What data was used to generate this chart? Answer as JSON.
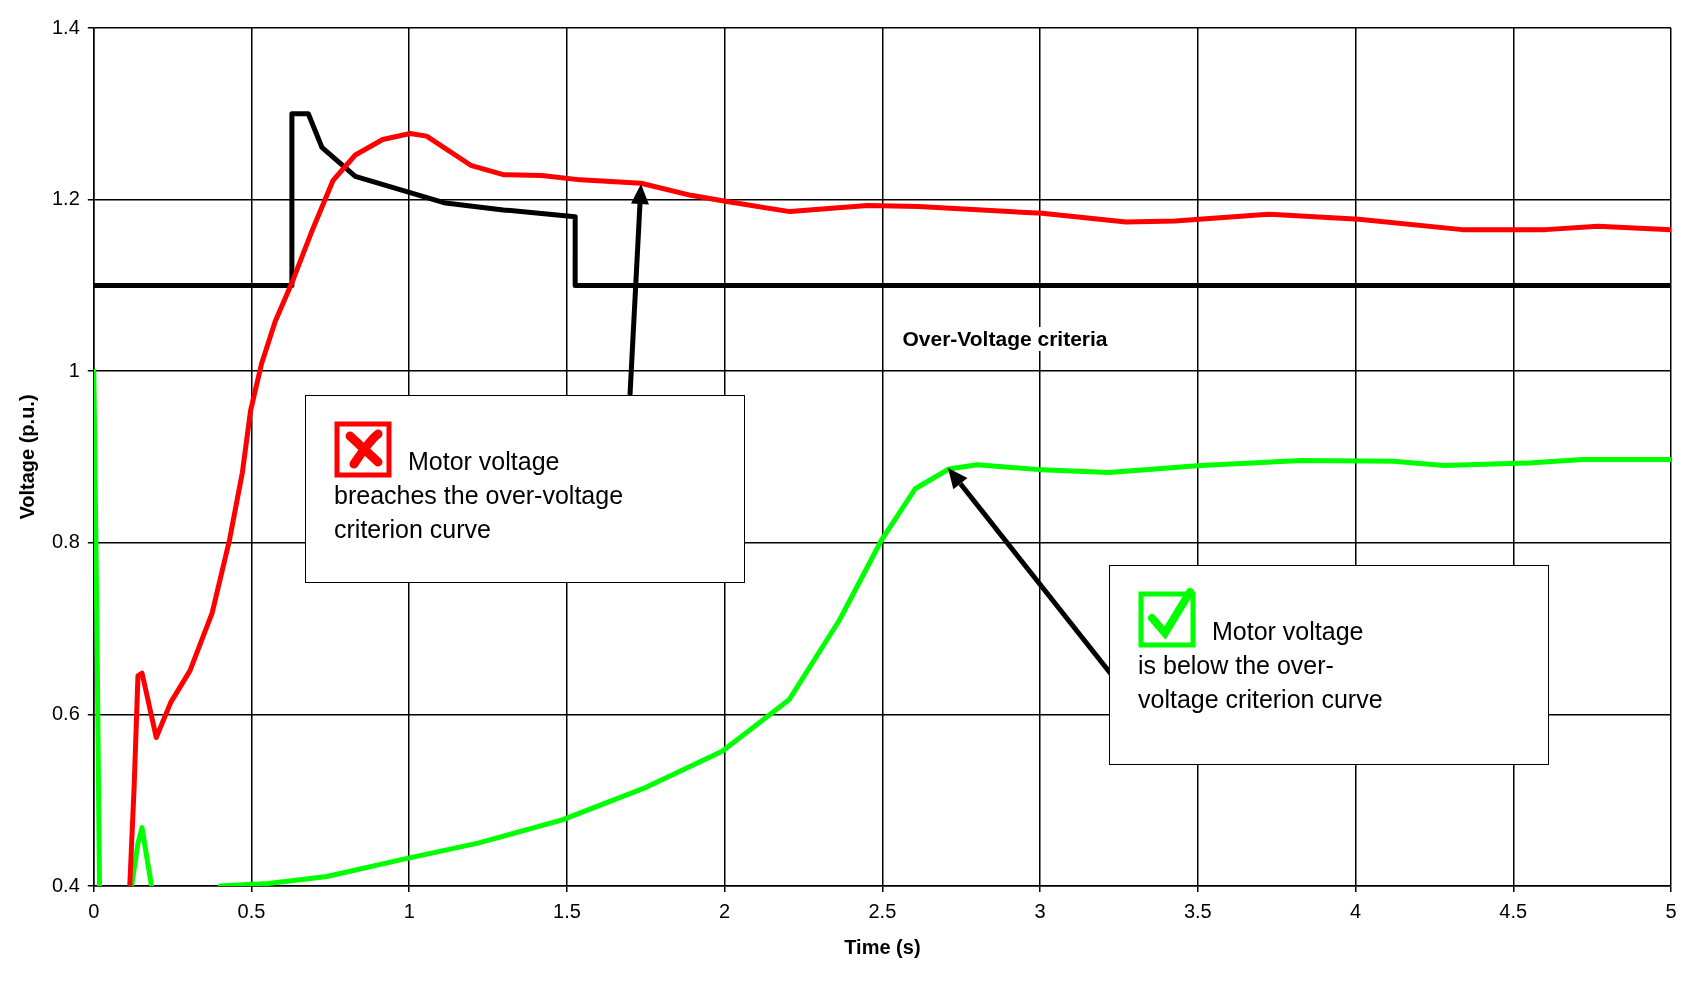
{
  "chart_data": {
    "type": "line",
    "xlabel": "Time (s)",
    "ylabel": "Voltage (p.u.)",
    "xlim": [
      0,
      5
    ],
    "xticks": [
      0,
      0.5,
      1,
      1.5,
      2,
      2.5,
      3,
      3.5,
      4,
      4.5,
      5
    ],
    "ylim": [
      0.4,
      1.4
    ],
    "yticks": [
      0.4,
      0.6,
      0.8,
      1,
      1.2,
      1.4
    ],
    "grid": true,
    "legend": false,
    "marker": "none",
    "line_style": "solid",
    "series": [
      {
        "color": "#ff0000",
        "x": [
          0.114,
          0.128,
          0.14,
          0.153,
          0.198,
          0.244,
          0.305,
          0.375,
          0.43,
          0.471,
          0.497,
          0.532,
          0.575,
          0.628,
          0.689,
          0.758,
          0.829,
          0.916,
          1.003,
          1.055,
          1.195,
          1.298,
          1.42,
          1.543,
          1.735,
          1.893,
          2.002,
          2.207,
          2.452,
          2.615,
          3.006,
          3.272,
          3.428,
          3.723,
          4.01,
          4.338,
          4.603,
          4.768,
          5.0
        ],
        "values": [
          0.4,
          0.517,
          0.645,
          0.648,
          0.573,
          0.614,
          0.651,
          0.718,
          0.803,
          0.882,
          0.954,
          1.009,
          1.058,
          1.103,
          1.161,
          1.222,
          1.252,
          1.27,
          1.277,
          1.274,
          1.24,
          1.229,
          1.228,
          1.223,
          1.219,
          1.205,
          1.198,
          1.186,
          1.193,
          1.192,
          1.184,
          1.174,
          1.175,
          1.183,
          1.177,
          1.165,
          1.165,
          1.169,
          1.165
        ]
      },
      {
        "color": "#00ff00",
        "x": [
          0,
          0.005,
          0.01,
          0.018,
          0.05,
          0.12,
          0.14,
          0.153,
          0.165,
          0.183,
          0.3,
          0.4,
          0.553,
          0.739,
          0.979,
          1.218,
          1.485,
          1.751,
          1.992,
          2.204,
          2.364,
          2.497,
          2.604,
          2.711,
          2.8,
          3.005,
          3.218,
          3.509,
          3.83,
          4.12,
          4.28,
          4.55,
          4.72,
          5.0
        ],
        "values": [
          1.0,
          0.85,
          0.7,
          0.4,
          null,
          0.4,
          0.45,
          0.468,
          0.44,
          0.4,
          null,
          0.4,
          0.403,
          0.411,
          0.431,
          0.45,
          0.477,
          0.515,
          0.557,
          0.617,
          0.71,
          0.803,
          0.863,
          0.886,
          0.891,
          0.885,
          0.882,
          0.89,
          0.896,
          0.895,
          0.89,
          0.893,
          0.897,
          0.897
        ]
      },
      {
        "color": "#000000",
        "x": [
          0,
          0.628,
          0.628,
          0.68,
          0.723,
          0.829,
          1.115,
          1.298,
          1.526,
          1.526,
          5.0
        ],
        "values": [
          1.1,
          1.1,
          1.3,
          1.3,
          1.261,
          1.227,
          1.196,
          1.188,
          1.18,
          1.1,
          1.1
        ]
      }
    ],
    "annotations": [
      "Over-Voltage criteria",
      "Motor voltage breaches the over-voltage criterion curve",
      "Motor voltage is below the over-voltage criterion curve"
    ]
  }
}
